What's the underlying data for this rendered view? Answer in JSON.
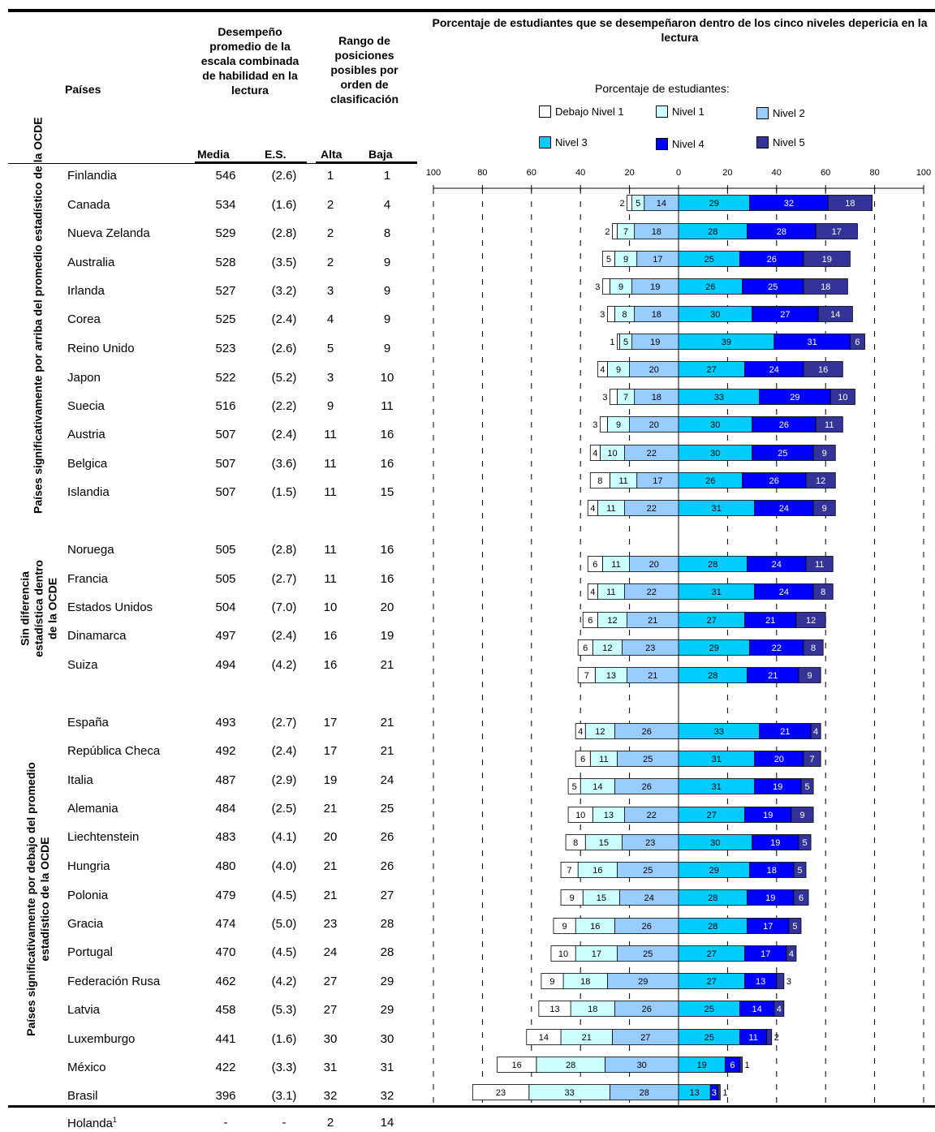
{
  "chart_data": {
    "type": "bar",
    "title": "Porcentaje de estudiantes que se desempeñaron dentro de los cinco niveles depericia en la lectura",
    "subtitle": "Porcentaje de estudiantes:",
    "x_ticks": [
      "100",
      "80",
      "60",
      "40",
      "20",
      "0",
      "20",
      "40",
      "60",
      "80",
      "100"
    ],
    "xlim": [
      -100,
      100
    ],
    "grid": true,
    "legend_position": "top",
    "levels": [
      {
        "name": "Debajo  Nivel 1",
        "color": "#ffffff"
      },
      {
        "name": "Nivel 1",
        "color": "#ccffff"
      },
      {
        "name": "Nivel 2",
        "color": "#99ccff"
      },
      {
        "name": "Nivel 3",
        "color": "#00ccff"
      },
      {
        "name": "Nivel 4",
        "color": "#0000ff"
      },
      {
        "name": "Nivel  5",
        "color": "#333399"
      }
    ],
    "bars": [
      {
        "values": [
          2,
          5,
          14,
          29,
          32,
          18
        ]
      },
      {
        "values": [
          2,
          7,
          18,
          28,
          28,
          17
        ]
      },
      {
        "values": [
          5,
          9,
          17,
          25,
          26,
          19
        ]
      },
      {
        "values": [
          3,
          9,
          19,
          26,
          25,
          18
        ]
      },
      {
        "values": [
          3,
          8,
          18,
          30,
          27,
          14
        ]
      },
      {
        "values": [
          1,
          5,
          19,
          39,
          31,
          6
        ]
      },
      {
        "values": [
          4,
          9,
          20,
          27,
          24,
          16
        ]
      },
      {
        "values": [
          3,
          7,
          18,
          33,
          29,
          10
        ]
      },
      {
        "values": [
          3,
          9,
          20,
          30,
          26,
          11
        ]
      },
      {
        "values": [
          4,
          10,
          22,
          30,
          25,
          9
        ]
      },
      {
        "values": [
          8,
          11,
          17,
          26,
          26,
          12
        ]
      },
      {
        "values": [
          4,
          11,
          22,
          31,
          24,
          9
        ]
      },
      {
        "values": [
          6,
          11,
          20,
          28,
          24,
          11
        ]
      },
      {
        "values": [
          4,
          11,
          22,
          31,
          24,
          8
        ]
      },
      {
        "values": [
          6,
          12,
          21,
          27,
          21,
          12
        ]
      },
      {
        "values": [
          6,
          12,
          23,
          29,
          22,
          8
        ]
      },
      {
        "values": [
          7,
          13,
          21,
          28,
          21,
          9
        ]
      },
      {
        "values": [
          4,
          12,
          26,
          33,
          21,
          4
        ]
      },
      {
        "values": [
          6,
          11,
          25,
          31,
          20,
          7
        ]
      },
      {
        "values": [
          5,
          14,
          26,
          31,
          19,
          5
        ]
      },
      {
        "values": [
          10,
          13,
          22,
          27,
          19,
          9
        ]
      },
      {
        "values": [
          8,
          15,
          23,
          30,
          19,
          5
        ]
      },
      {
        "values": [
          7,
          16,
          25,
          29,
          18,
          5
        ]
      },
      {
        "values": [
          9,
          15,
          24,
          28,
          19,
          6
        ]
      },
      {
        "values": [
          9,
          16,
          26,
          28,
          17,
          5
        ]
      },
      {
        "values": [
          10,
          17,
          25,
          27,
          17,
          4
        ]
      },
      {
        "values": [
          9,
          18,
          29,
          27,
          13,
          3
        ]
      },
      {
        "values": [
          13,
          18,
          26,
          25,
          14,
          4
        ]
      },
      {
        "values": [
          14,
          21,
          27,
          25,
          11,
          2
        ]
      },
      {
        "values": [
          16,
          28,
          30,
          19,
          6,
          1
        ]
      },
      {
        "values": [
          23,
          33,
          28,
          13,
          3,
          1
        ]
      }
    ]
  },
  "table": {
    "headers": {
      "paises": "Países",
      "desempeno": "Desempeño promedio de la escala combinada de habilidad en la lectura",
      "rango": "Rango de posiciones posibles por orden de clasificación",
      "media": "Media",
      "es": "E.S.",
      "alta": "Alta",
      "baja": "Baja"
    },
    "groups": [
      "Países significativamente por arriba del promedio estadístico de la OCDE",
      "Sin diferencia estadística dentro de la OCDE",
      "Países significativamente por debajo del promedio estadístico de la OCDE"
    ],
    "rows": [
      {
        "pais": "Finlandia",
        "media": "546",
        "es": "(2.6)",
        "alta": "1",
        "baja": "1"
      },
      {
        "pais": "Canada",
        "media": "534",
        "es": "(1.6)",
        "alta": "2",
        "baja": "4"
      },
      {
        "pais": "Nueva Zelanda",
        "media": "529",
        "es": "(2.8)",
        "alta": "2",
        "baja": "8"
      },
      {
        "pais": "Australia",
        "media": "528",
        "es": "(3.5)",
        "alta": "2",
        "baja": "9"
      },
      {
        "pais": "Irlanda",
        "media": "527",
        "es": "(3.2)",
        "alta": "3",
        "baja": "9"
      },
      {
        "pais": "Corea",
        "media": "525",
        "es": "(2.4)",
        "alta": "4",
        "baja": "9"
      },
      {
        "pais": "Reino Unido",
        "media": "523",
        "es": "(2.6)",
        "alta": "5",
        "baja": "9"
      },
      {
        "pais": "Japon",
        "media": "522",
        "es": "(5.2)",
        "alta": "3",
        "baja": "10"
      },
      {
        "pais": "Suecia",
        "media": "516",
        "es": "(2.2)",
        "alta": "9",
        "baja": "11"
      },
      {
        "pais": "Austria",
        "media": "507",
        "es": "(2.4)",
        "alta": "11",
        "baja": "16"
      },
      {
        "pais": "Belgica",
        "media": "507",
        "es": "(3.6)",
        "alta": "11",
        "baja": "16"
      },
      {
        "pais": "Islandia",
        "media": "507",
        "es": "(1.5)",
        "alta": "11",
        "baja": "15"
      },
      {
        "pais": "Noruega",
        "media": "505",
        "es": "(2.8)",
        "alta": "11",
        "baja": "16"
      },
      {
        "pais": "Francia",
        "media": "505",
        "es": "(2.7)",
        "alta": "11",
        "baja": "16"
      },
      {
        "pais": "Estados Unidos",
        "media": "504",
        "es": "(7.0)",
        "alta": "10",
        "baja": "20"
      },
      {
        "pais": "Dinamarca",
        "media": "497",
        "es": "(2.4)",
        "alta": "16",
        "baja": "19"
      },
      {
        "pais": "Suiza",
        "media": "494",
        "es": "(4.2)",
        "alta": "16",
        "baja": "21"
      },
      {
        "pais": "España",
        "media": "493",
        "es": "(2.7)",
        "alta": "17",
        "baja": "21"
      },
      {
        "pais": "República Checa",
        "media": "492",
        "es": "(2.4)",
        "alta": "17",
        "baja": "21"
      },
      {
        "pais": "Italia",
        "media": "487",
        "es": "(2.9)",
        "alta": "19",
        "baja": "24"
      },
      {
        "pais": "Alemania",
        "media": "484",
        "es": "(2.5)",
        "alta": "21",
        "baja": "25"
      },
      {
        "pais": "Liechtenstein",
        "media": "483",
        "es": "(4.1)",
        "alta": "20",
        "baja": "26"
      },
      {
        "pais": "Hungria",
        "media": "480",
        "es": "(4.0)",
        "alta": "21",
        "baja": "26"
      },
      {
        "pais": "Polonia",
        "media": "479",
        "es": "(4.5)",
        "alta": "21",
        "baja": "27"
      },
      {
        "pais": "Gracia",
        "media": "474",
        "es": "(5.0)",
        "alta": "23",
        "baja": "28"
      },
      {
        "pais": "Portugal",
        "media": "470",
        "es": "(4.5)",
        "alta": "24",
        "baja": "28"
      },
      {
        "pais": "Federación Rusa",
        "media": "462",
        "es": "(4.2)",
        "alta": "27",
        "baja": "29"
      },
      {
        "pais": "Latvia",
        "media": "458",
        "es": "(5.3)",
        "alta": "27",
        "baja": "29"
      },
      {
        "pais": "Luxemburgo",
        "media": "441",
        "es": "(1.6)",
        "alta": "30",
        "baja": "30"
      },
      {
        "pais": "México",
        "media": "422",
        "es": "(3.3)",
        "alta": "31",
        "baja": "31"
      },
      {
        "pais": "Brasil",
        "media": "396",
        "es": "(3.1)",
        "alta": "32",
        "baja": "32"
      }
    ],
    "footer_row": {
      "pais": "Holanda",
      "sup": "1",
      "media": "-",
      "es": "-",
      "alta": "2",
      "baja": "14"
    }
  }
}
